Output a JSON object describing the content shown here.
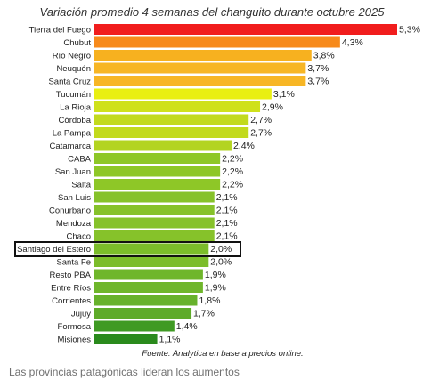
{
  "chart_data": {
    "type": "bar",
    "orientation": "horizontal",
    "title": "Variación promedio 4 semanas del changuito durante octubre 2025",
    "xlabel": "",
    "ylabel": "",
    "xlim": [
      0,
      5.3
    ],
    "grid": false,
    "legend": "none",
    "value_suffix": "%",
    "categories": [
      "Tierra del Fuego",
      "Chubut",
      "Río Negro",
      "Neuquén",
      "Santa Cruz",
      "Tucumán",
      "La Rioja",
      "Córdoba",
      "La Pampa",
      "Catamarca",
      "CABA",
      "San Juan",
      "Salta",
      "San Luis",
      "Conurbano",
      "Mendoza",
      "Chaco",
      "Santiago del Estero",
      "Santa Fe",
      "Resto PBA",
      "Entre Ríos",
      "Corrientes",
      "Jujuy",
      "Formosa",
      "Misiones"
    ],
    "values": [
      5.3,
      4.3,
      3.8,
      3.7,
      3.7,
      3.1,
      2.9,
      2.7,
      2.7,
      2.4,
      2.2,
      2.2,
      2.2,
      2.1,
      2.1,
      2.1,
      2.1,
      2.0,
      2.0,
      1.9,
      1.9,
      1.8,
      1.7,
      1.4,
      1.1
    ],
    "value_labels": [
      "5,3%",
      "4,3%",
      "3,8%",
      "3,7%",
      "3,7%",
      "3,1%",
      "2,9%",
      "2,7%",
      "2,7%",
      "2,4%",
      "2,2%",
      "2,2%",
      "2,2%",
      "2,1%",
      "2,1%",
      "2,1%",
      "2,1%",
      "2,0%",
      "2,0%",
      "1,9%",
      "1,9%",
      "1,8%",
      "1,7%",
      "1,4%",
      "1,1%"
    ],
    "bar_colors": [
      "#f11d1d",
      "#f78a1b",
      "#f7b11f",
      "#f7b625",
      "#f7b625",
      "#e9ef12",
      "#cfe11b",
      "#c2da1d",
      "#c2da1d",
      "#b3d421",
      "#8ec727",
      "#8ec727",
      "#8ec727",
      "#86c22a",
      "#86c22a",
      "#86c22a",
      "#86c22a",
      "#7bbd2a",
      "#7bbd2a",
      "#6fb62b",
      "#6fb62b",
      "#67b22b",
      "#5eab29",
      "#3f9a23",
      "#2a8a1c"
    ],
    "highlighted": "Santiago del Estero",
    "highlight_color": "#111111"
  },
  "source": {
    "prefix": "Fuente:",
    "text": "Analytica en base a precios online."
  },
  "caption": "Las provincias patagónicas lideran los aumentos"
}
